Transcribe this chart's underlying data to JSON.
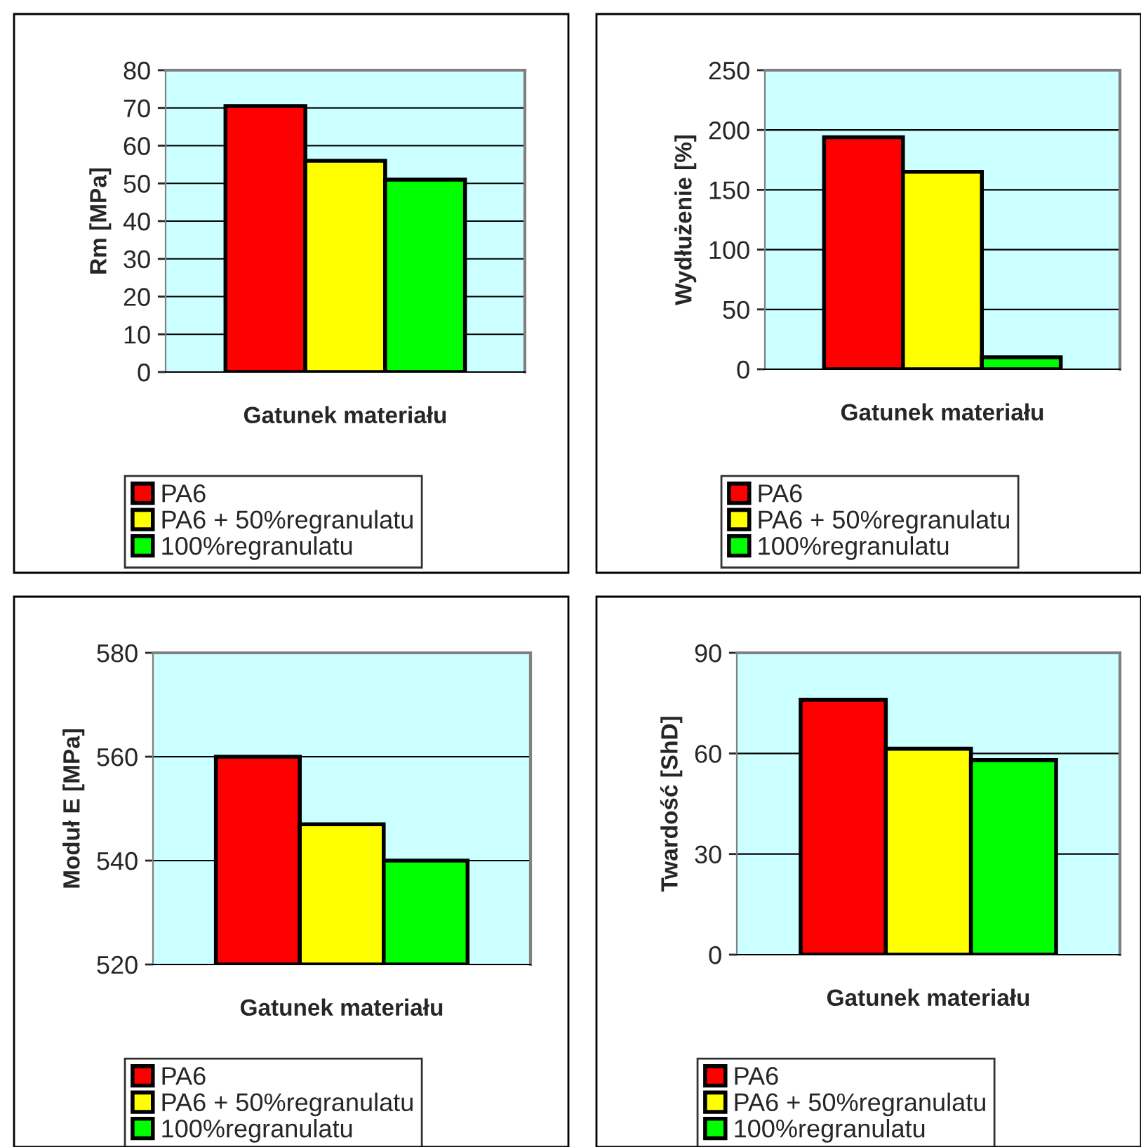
{
  "chart_data": [
    {
      "type": "bar",
      "xlabel": "Gatunek materiału",
      "ylabel": "Rm [MPa]",
      "categories": [
        null
      ],
      "ylim": [
        0,
        80
      ],
      "yticks": [
        0,
        10,
        20,
        30,
        40,
        50,
        60,
        70,
        80
      ],
      "grid": "y",
      "legend": "bottom",
      "series": [
        {
          "name": "PA6",
          "color": "#ff0000",
          "values": [
            70.5
          ]
        },
        {
          "name": "PA6 + 50%regranulatu",
          "color": "#ffff00",
          "values": [
            56
          ]
        },
        {
          "name": "100%regranulatu",
          "color": "#00ff00",
          "values": [
            51
          ]
        }
      ]
    },
    {
      "type": "bar",
      "xlabel": "Gatunek materiału",
      "ylabel": "Wydłużenie [%]",
      "categories": [
        null
      ],
      "ylim": [
        0,
        250
      ],
      "yticks": [
        0,
        50,
        100,
        150,
        200,
        250
      ],
      "grid": "y",
      "legend": "bottom",
      "series": [
        {
          "name": "PA6",
          "color": "#ff0000",
          "values": [
            194
          ]
        },
        {
          "name": "PA6 + 50%regranulatu",
          "color": "#ffff00",
          "values": [
            165
          ]
        },
        {
          "name": "100%regranulatu",
          "color": "#00ff00",
          "values": [
            10
          ]
        }
      ]
    },
    {
      "type": "bar",
      "xlabel": "Gatunek materiału",
      "ylabel": "Moduł E [MPa]",
      "categories": [
        null
      ],
      "ylim": [
        520,
        580
      ],
      "yticks": [
        520,
        540,
        560,
        580
      ],
      "grid": "y",
      "legend": "bottom",
      "series": [
        {
          "name": "PA6",
          "color": "#ff0000",
          "values": [
            560
          ]
        },
        {
          "name": "PA6 + 50%regranulatu",
          "color": "#ffff00",
          "values": [
            547
          ]
        },
        {
          "name": "100%regranulatu",
          "color": "#00ff00",
          "values": [
            540
          ]
        }
      ]
    },
    {
      "type": "bar",
      "xlabel": "Gatunek materiału",
      "ylabel": "Twardość [ShD]",
      "categories": [
        null
      ],
      "ylim": [
        0,
        90
      ],
      "yticks": [
        0,
        30,
        60,
        90
      ],
      "grid": "y",
      "legend": "bottom",
      "series": [
        {
          "name": "PA6",
          "color": "#ff0000",
          "values": [
            76
          ]
        },
        {
          "name": "PA6 + 50%regranulatu",
          "color": "#ffff00",
          "values": [
            61.4
          ]
        },
        {
          "name": "100%regranulatu",
          "color": "#00ff00",
          "values": [
            58
          ]
        }
      ]
    }
  ]
}
